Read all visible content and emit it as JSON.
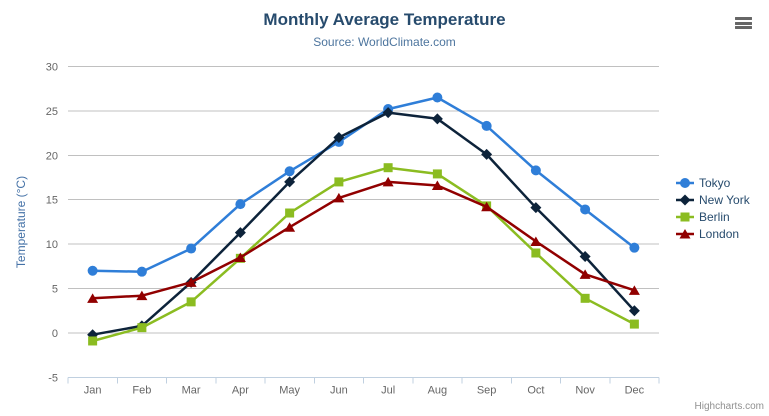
{
  "credits_label": "Highcharts.com",
  "chart_data": {
    "type": "line",
    "title": "Monthly Average Temperature",
    "subtitle": "Source: WorldClimate.com",
    "xlabel": "",
    "ylabel": "Temperature (°C)",
    "ylim": [
      -5,
      30
    ],
    "ytick_step": 5,
    "grid": true,
    "legend_position": "right",
    "categories": [
      "Jan",
      "Feb",
      "Mar",
      "Apr",
      "May",
      "Jun",
      "Jul",
      "Aug",
      "Sep",
      "Oct",
      "Nov",
      "Dec"
    ],
    "series": [
      {
        "name": "Tokyo",
        "color": "#2f7ed8",
        "marker": "circle",
        "values": [
          7.0,
          6.9,
          9.5,
          14.5,
          18.2,
          21.5,
          25.2,
          26.5,
          23.3,
          18.3,
          13.9,
          9.6
        ]
      },
      {
        "name": "New York",
        "color": "#0d233a",
        "marker": "diamond",
        "values": [
          -0.2,
          0.8,
          5.7,
          11.3,
          17.0,
          22.0,
          24.8,
          24.1,
          20.1,
          14.1,
          8.6,
          2.5
        ]
      },
      {
        "name": "Berlin",
        "color": "#8bbc21",
        "marker": "square",
        "values": [
          -0.9,
          0.6,
          3.5,
          8.4,
          13.5,
          17.0,
          18.6,
          17.9,
          14.3,
          9.0,
          3.9,
          1.0
        ]
      },
      {
        "name": "London",
        "color": "#910000",
        "marker": "triangle",
        "values": [
          3.9,
          4.2,
          5.7,
          8.5,
          11.9,
          15.2,
          17.0,
          16.6,
          14.2,
          10.3,
          6.6,
          4.8
        ]
      }
    ]
  },
  "colors": {
    "title": "#274b6d",
    "subtitle": "#4d759e",
    "axis_labels": "#666666",
    "y_axis_title": "#4572a7",
    "gridline": "#c0c0c0",
    "axis_line": "#c0d0e0",
    "legend_text": "#274b6d",
    "credits": "#909090",
    "export_icon": "#666666",
    "background": "#ffffff"
  }
}
